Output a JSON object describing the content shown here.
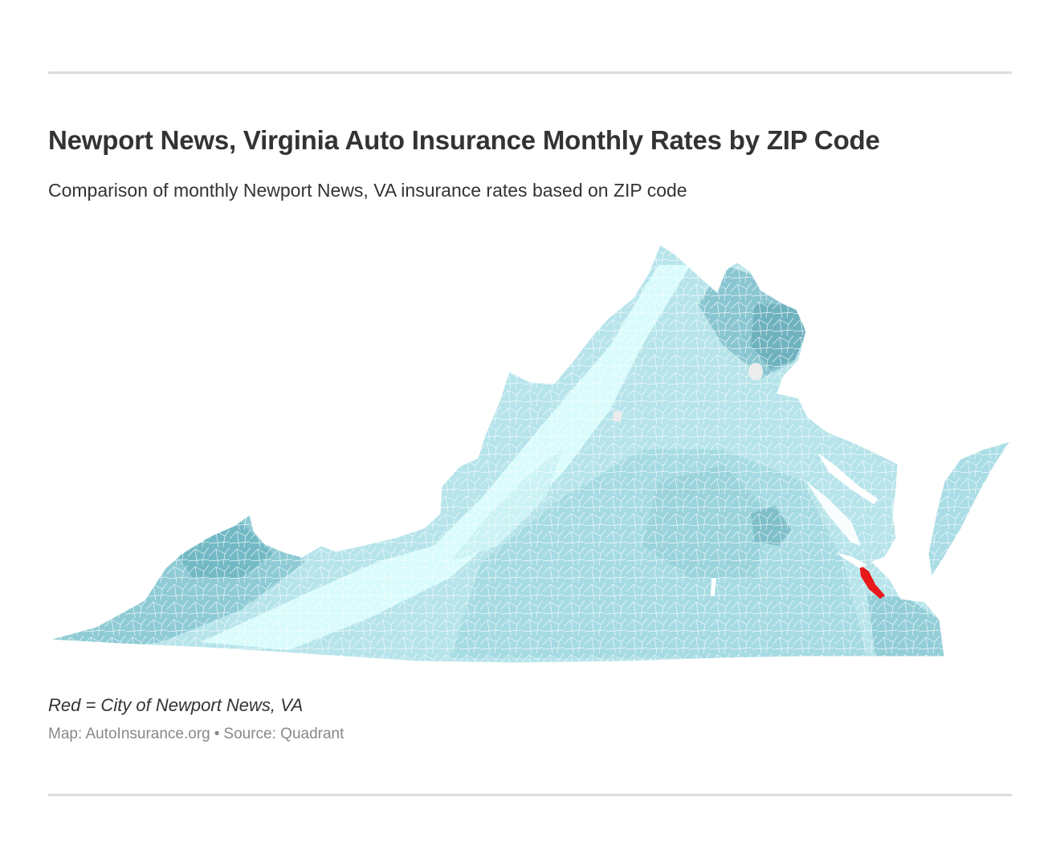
{
  "header": {
    "title": "Newport News, Virginia Auto Insurance Monthly Rates by ZIP Code",
    "subtitle": "Comparison of monthly Newport News, VA insurance rates based on ZIP code"
  },
  "map": {
    "region": "Virginia",
    "unit": "ZIP code",
    "highlight_color": "#e8191a",
    "color_scale": [
      "#d9fbfb",
      "#c4ecef",
      "#a9dde5",
      "#8ccbd6",
      "#6fb2bf"
    ],
    "boundary_color": "#ffffff"
  },
  "footer": {
    "note": "Red = City of Newport News, VA",
    "map_credit": "Map: AutoInsurance.org",
    "separator": "•",
    "source": "Source: Quadrant"
  }
}
